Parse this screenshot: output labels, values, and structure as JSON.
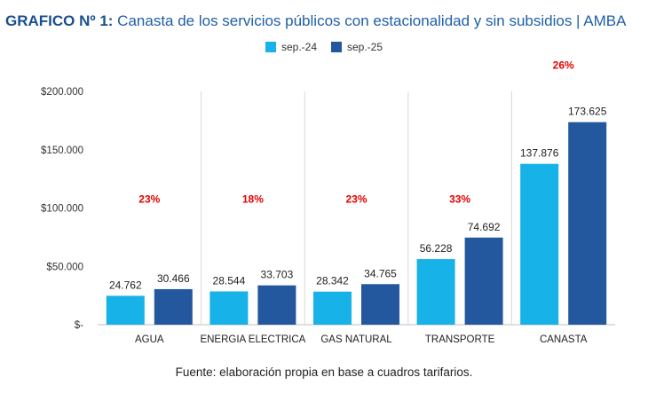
{
  "title": {
    "prefix": "GRAFICO Nº 1:",
    "text": "Canasta de los servicios públicos con estacionalidad y sin subsidios | AMBA"
  },
  "source": "Fuente: elaboración propia en base a cuadros tarifarios.",
  "chart_data": {
    "type": "bar",
    "categories": [
      "AGUA",
      "ENERGIA ELECTRICA",
      "GAS NATURAL",
      "TRANSPORTE",
      "CANASTA"
    ],
    "series": [
      {
        "name": "sep.-24",
        "values": [
          24762,
          28544,
          28342,
          56228,
          137876
        ],
        "labels": [
          "24.762",
          "28.544",
          "28.342",
          "56.228",
          "137.876"
        ],
        "color": "#16b2e8"
      },
      {
        "name": "sep.-25",
        "values": [
          30466,
          33703,
          34765,
          74692,
          173625
        ],
        "labels": [
          "30.466",
          "33.703",
          "34.765",
          "74.692",
          "173.625"
        ],
        "color": "#23579e"
      }
    ],
    "annotations": [
      "23%",
      "18%",
      "23%",
      "33%",
      "26%"
    ],
    "annotation_color": "#e60000",
    "annotation_values": [
      100000,
      100000,
      100000,
      100000,
      215000
    ],
    "ylim": [
      0,
      200000
    ],
    "yticks": [
      0,
      50000,
      100000,
      150000,
      200000
    ],
    "ytick_labels": [
      "$-",
      "$50.000",
      "$100.000",
      "$150.000",
      "$200.000"
    ],
    "grid": false,
    "legend_position": "top-center",
    "separators_color": "#d9d9d9"
  }
}
